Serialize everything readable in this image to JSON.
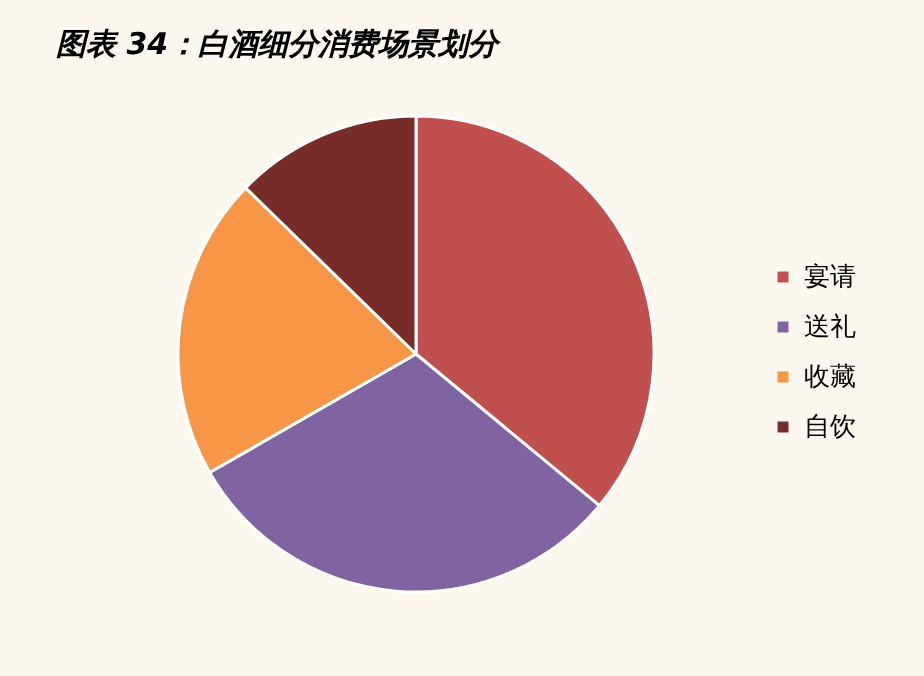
{
  "chart_data": {
    "type": "pie",
    "title": "图表 34：白酒细分消费场景划分",
    "categories": [
      "宴请",
      "送礼",
      "收藏",
      "自饮"
    ],
    "values": [
      36,
      30.7,
      20.6,
      12.7
    ],
    "colors": [
      "#c0504d",
      "#8064a2",
      "#f79646",
      "#772c2a"
    ],
    "legend": "right"
  }
}
